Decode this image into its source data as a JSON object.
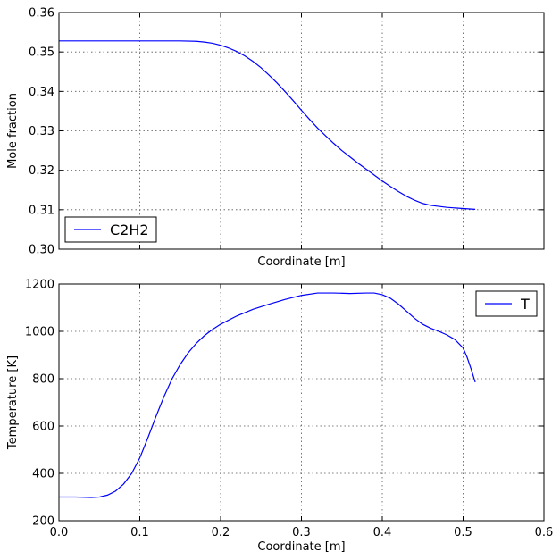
{
  "chart_data": [
    {
      "type": "line",
      "xlabel": "Coordinate [m]",
      "ylabel": "Mole fraction",
      "xlim": [
        0.0,
        0.6
      ],
      "ylim": [
        0.3,
        0.36
      ],
      "xticks": [
        0.0,
        0.1,
        0.2,
        0.3,
        0.4,
        0.5,
        0.6
      ],
      "yticks": [
        0.3,
        0.31,
        0.32,
        0.33,
        0.34,
        0.35,
        0.36
      ],
      "ytick_labels": [
        "0.30",
        "0.31",
        "0.32",
        "0.33",
        "0.34",
        "0.35",
        "0.36"
      ],
      "show_xtick_labels": false,
      "grid": true,
      "legend_position": "lower-left",
      "series": [
        {
          "name": "C2H2",
          "color": "#0000ff",
          "x": [
            0.0,
            0.05,
            0.1,
            0.15,
            0.17,
            0.18,
            0.19,
            0.2,
            0.21,
            0.22,
            0.23,
            0.24,
            0.25,
            0.26,
            0.27,
            0.28,
            0.29,
            0.3,
            0.31,
            0.32,
            0.33,
            0.34,
            0.35,
            0.36,
            0.37,
            0.38,
            0.39,
            0.4,
            0.41,
            0.42,
            0.43,
            0.44,
            0.45,
            0.46,
            0.48,
            0.5,
            0.515
          ],
          "y": [
            0.3528,
            0.3528,
            0.3528,
            0.3528,
            0.3527,
            0.3525,
            0.3522,
            0.3517,
            0.351,
            0.3501,
            0.349,
            0.3476,
            0.346,
            0.3441,
            0.3421,
            0.3399,
            0.3376,
            0.3352,
            0.3329,
            0.3307,
            0.3287,
            0.3268,
            0.325,
            0.3234,
            0.3218,
            0.3203,
            0.3188,
            0.3173,
            0.3159,
            0.3146,
            0.3134,
            0.3124,
            0.3116,
            0.3111,
            0.3106,
            0.3103,
            0.3101
          ]
        }
      ]
    },
    {
      "type": "line",
      "xlabel": "Coordinate [m]",
      "ylabel": "Temperature [K]",
      "xlim": [
        0.0,
        0.6
      ],
      "ylim": [
        200,
        1200
      ],
      "xticks": [
        0.0,
        0.1,
        0.2,
        0.3,
        0.4,
        0.5,
        0.6
      ],
      "xtick_labels": [
        "0.0",
        "0.1",
        "0.2",
        "0.3",
        "0.4",
        "0.5",
        "0.6"
      ],
      "yticks": [
        200,
        400,
        600,
        800,
        1000,
        1200
      ],
      "ytick_labels": [
        "200",
        "400",
        "600",
        "800",
        "1000",
        "1200"
      ],
      "show_xtick_labels": true,
      "grid": true,
      "legend_position": "upper-right",
      "series": [
        {
          "name": "T",
          "color": "#0000ff",
          "x": [
            0.0,
            0.02,
            0.04,
            0.05,
            0.06,
            0.07,
            0.08,
            0.09,
            0.1,
            0.11,
            0.12,
            0.13,
            0.14,
            0.15,
            0.16,
            0.17,
            0.18,
            0.19,
            0.2,
            0.22,
            0.24,
            0.26,
            0.28,
            0.3,
            0.32,
            0.34,
            0.36,
            0.38,
            0.39,
            0.4,
            0.41,
            0.42,
            0.43,
            0.44,
            0.45,
            0.46,
            0.47,
            0.48,
            0.49,
            0.5,
            0.505,
            0.51,
            0.515
          ],
          "y": [
            300,
            300,
            298,
            300,
            308,
            325,
            355,
            400,
            465,
            550,
            640,
            725,
            800,
            860,
            910,
            950,
            982,
            1008,
            1030,
            1065,
            1093,
            1115,
            1135,
            1152,
            1162,
            1162,
            1160,
            1162,
            1162,
            1155,
            1140,
            1115,
            1085,
            1055,
            1030,
            1013,
            1000,
            985,
            965,
            930,
            890,
            840,
            785
          ]
        }
      ]
    }
  ]
}
